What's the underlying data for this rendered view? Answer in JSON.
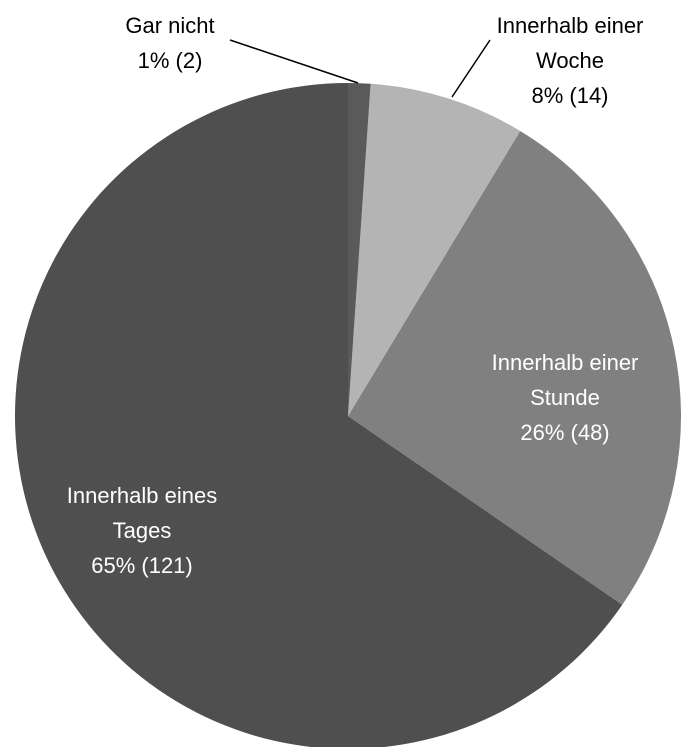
{
  "chart_data": {
    "type": "pie",
    "categories": [
      "Gar nicht",
      "Innerhalb einer Woche",
      "Innerhalb einer Stunde",
      "Innerhalb eines Tages"
    ],
    "values": [
      2,
      14,
      48,
      121
    ],
    "value_labels": [
      "1% (2)",
      "8% (14)",
      "26% (48)",
      "65% (121)"
    ],
    "colors": [
      "#5a5a5a",
      "#b4b4b4",
      "#808080",
      "#4f4f4f"
    ]
  }
}
